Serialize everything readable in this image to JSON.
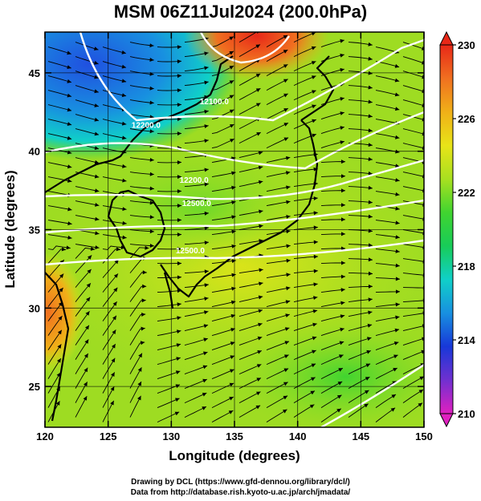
{
  "title": "MSM 06Z11Jul2024 (200.0hPa)",
  "xlabel": "Longitude (degrees)",
  "ylabel": "Latitude  (degrees)",
  "credits": {
    "line1": "Drawing by DCL (https://www.gfd-dennou.org/library/dcl/)",
    "line2": "Data from http://database.rish.kyoto-u.ac.jp/arch/jmadata/"
  },
  "chart_data": {
    "type": "heatmap",
    "field": "temperature with wind streamlines and geopotential height contours",
    "xlim": [
      120,
      150
    ],
    "ylim": [
      22.4,
      47.6
    ],
    "xticks": [
      "120",
      "125",
      "130",
      "135",
      "140",
      "145",
      "150"
    ],
    "xtick_values": [
      120,
      125,
      130,
      135,
      140,
      145,
      150
    ],
    "yticks": [
      "25",
      "30",
      "35",
      "40",
      "45"
    ],
    "ytick_values": [
      25,
      30,
      35,
      40,
      45
    ],
    "grid": true,
    "colorbar": {
      "min": 210,
      "max": 230,
      "tick_labels": [
        "210",
        "214",
        "218",
        "222",
        "226",
        "230"
      ],
      "tick_values": [
        210,
        214,
        218,
        222,
        226,
        230
      ],
      "colors": [
        "#e020c0",
        "#7030d0",
        "#1838d8",
        "#1890e0",
        "#10d0c8",
        "#18cc58",
        "#40d430",
        "#a8e020",
        "#e8e418",
        "#f0b018",
        "#f07020",
        "#e82818"
      ]
    },
    "contour_labels": [
      {
        "text": "12100.0",
        "lon": 133.4,
        "lat": 43.0
      },
      {
        "text": "12200.0",
        "lon": 128.0,
        "lat": 41.5
      },
      {
        "text": "12200.0",
        "lon": 131.8,
        "lat": 38.0
      },
      {
        "text": "12500.0",
        "lon": 132.0,
        "lat": 36.5
      },
      {
        "text": "12500.0",
        "lon": 131.5,
        "lat": 33.5
      }
    ]
  }
}
